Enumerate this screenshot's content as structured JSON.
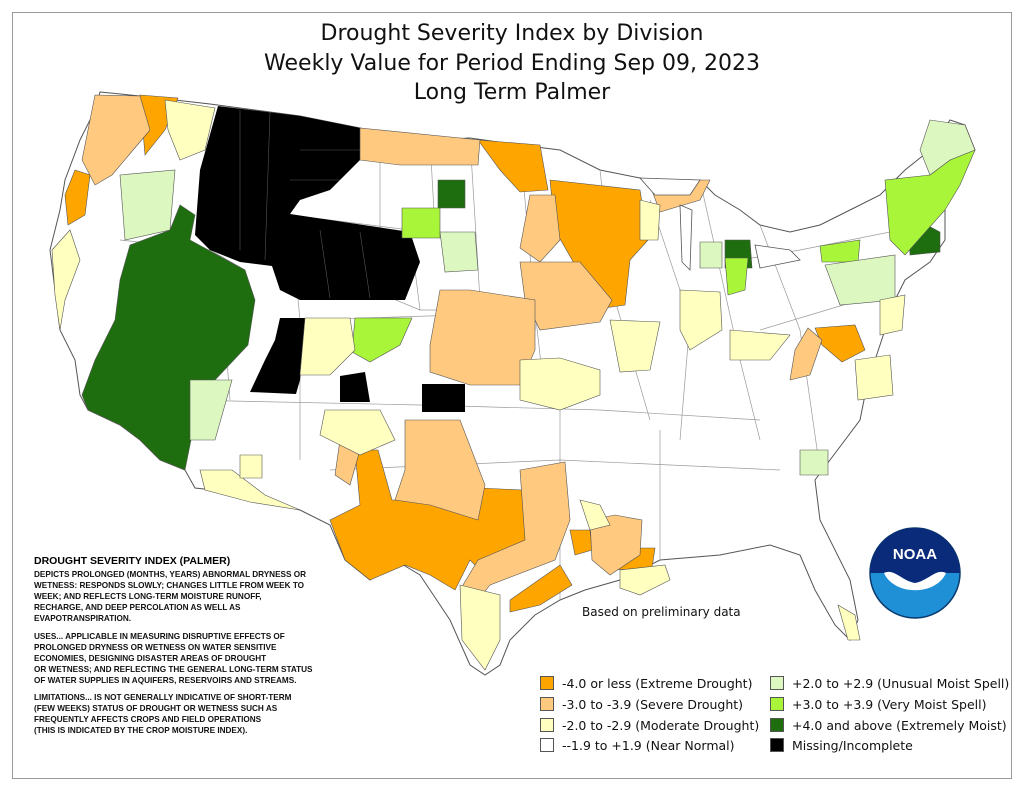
{
  "title": {
    "line1": "Drought Severity Index by Division",
    "line2": "Weekly Value for Period Ending Sep 09, 2023",
    "line3": "Long Term Palmer"
  },
  "info": {
    "heading": "DROUGHT SEVERITY INDEX (PALMER)",
    "description": "DEPICTS PROLONGED (MONTHS, YEARS) ABNORMAL DRYNESS OR\nWETNESS: RESPONDS SLOWLY; CHANGES LITTLE FROM WEEK TO\nWEEK; AND REFLECTS LONG-TERM MOISTURE RUNOFF,\nRECHARGE, AND DEEP PERCOLATION AS WELL AS\nEVAPOTRANSPIRATION.",
    "uses": "USES... APPLICABLE IN MEASURING DISRUPTIVE EFFECTS OF\nPROLONGED DRYNESS OR WETNESS ON WATER SENSITIVE\nECONOMIES, DESIGNING DISASTER AREAS OF DROUGHT\nOR WETNESS; AND REFLECTING THE GENERAL LONG-TERM STATUS\nOF WATER SUPPLIES IN AQUIFERS, RESERVOIRS AND STREAMS.",
    "limitations": "LIMITATIONS... IS NOT GENERALLY INDICATIVE OF SHORT-TERM\n(FEW WEEKS) STATUS OF DROUGHT OR WETNESS SUCH AS\nFREQUENTLY AFFECTS CROPS AND FIELD OPERATIONS\n(THIS IS INDICATED BY THE CROP MOISTURE INDEX)."
  },
  "note": "Based on preliminary data",
  "logo_text": "NOAA",
  "legend": [
    {
      "label": "-4.0 or less (Extreme Drought)",
      "color": "#ffa500"
    },
    {
      "label": "-3.0 to -3.9 (Severe Drought)",
      "color": "#ffc97f"
    },
    {
      "label": "-2.0 to -2.9 (Moderate Drought)",
      "color": "#ffffbf"
    },
    {
      "label": "--1.9 to +1.9 (Near Normal)",
      "color": "#ffffff"
    },
    {
      "label": "+2.0 to +2.9 (Unusual Moist Spell)",
      "color": "#dcf7c0"
    },
    {
      "label": "+3.0 to +3.9 (Very Moist Spell)",
      "color": "#a8f53a"
    },
    {
      "label": "+4.0 and above (Extremely Moist)",
      "color": "#1e6e0f"
    },
    {
      "label": "Missing/Incomplete",
      "color": "#000000"
    }
  ]
}
